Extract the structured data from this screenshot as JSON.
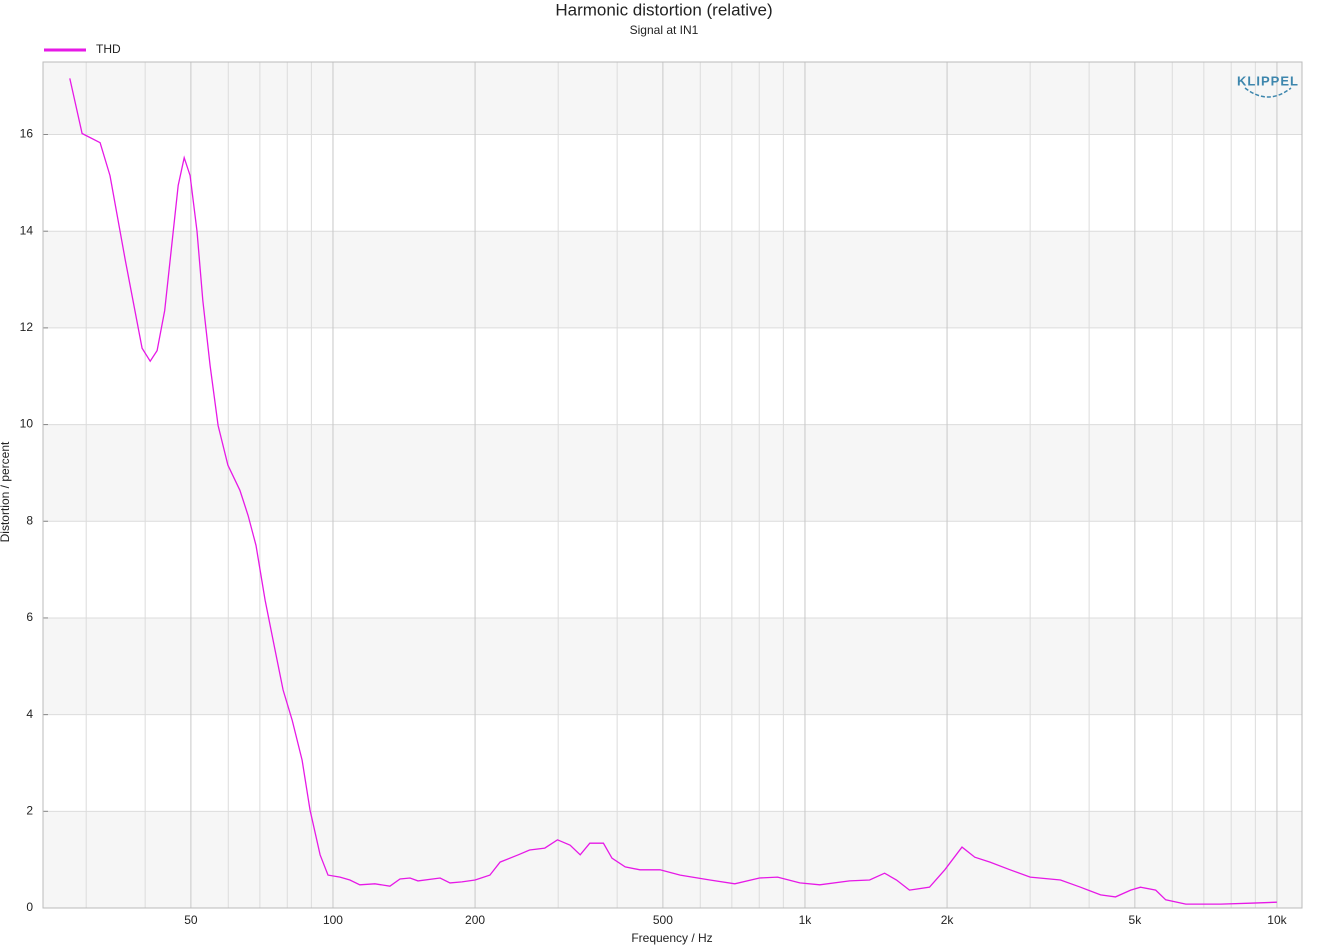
{
  "chart_data": {
    "type": "line",
    "title": "Harmonic distortion (relative)",
    "subtitle": "Signal at IN1",
    "x_label": "Frequency / Hz",
    "y_label": "Distortion / percent",
    "logo": "KLIPPEL",
    "x_scale": "log",
    "xlim": [
      24.3,
      11300
    ],
    "xticks": [
      50,
      100,
      200,
      500,
      {
        "value": 1000,
        "label": "1k"
      },
      {
        "value": 2000,
        "label": "2k"
      },
      {
        "value": 5000,
        "label": "5k"
      },
      {
        "value": 10000,
        "label": "10k"
      }
    ],
    "xminor": [
      30,
      40,
      60,
      70,
      80,
      90,
      300,
      400,
      600,
      700,
      800,
      900,
      3000,
      4000,
      6000,
      7000,
      8000,
      9000
    ],
    "ylim": [
      0,
      17.5
    ],
    "yticks": [
      0,
      2,
      4,
      6,
      8,
      10,
      12,
      14,
      16
    ],
    "grid": true,
    "bands": true,
    "legend": "top-left",
    "x": [
      27.7,
      29.4,
      32.1,
      33.7,
      36.3,
      39.4,
      41.0,
      42.4,
      44.0,
      47.0,
      48.4,
      49.8,
      51.5,
      53.0,
      54.9,
      57.1,
      59.9,
      63.5,
      66.1,
      68.7,
      71.8,
      75.4,
      78.4,
      81.9,
      86.0,
      89.4,
      93.9,
      97.6,
      103.5,
      108.6,
      114,
      122.7,
      132,
      138.7,
      145.6,
      151.4,
      168.6,
      177,
      187.6,
      200,
      215,
      226,
      247,
      261,
      281,
      299,
      318,
      334,
      350,
      374,
      390,
      416,
      447,
      493,
      544,
      629,
      710,
      801,
      875,
      975,
      1075,
      1243,
      1371,
      1475,
      1563,
      1665,
      1836,
      1978,
      2151,
      2290,
      2466,
      2721,
      3001,
      3478,
      3835,
      4230,
      4550,
      4900,
      5140,
      5535,
      5812,
      6410,
      7605,
      8766,
      10000
    ],
    "series": [
      {
        "name": "THD",
        "color": "#e619e6",
        "values": [
          17.16,
          16.02,
          15.83,
          15.15,
          13.4,
          11.58,
          11.31,
          11.53,
          12.36,
          14.95,
          15.52,
          15.15,
          14.0,
          12.57,
          11.22,
          9.98,
          9.16,
          8.64,
          8.12,
          7.5,
          6.37,
          5.33,
          4.51,
          3.89,
          3.06,
          2.03,
          1.1,
          0.68,
          0.64,
          0.58,
          0.48,
          0.5,
          0.45,
          0.6,
          0.62,
          0.56,
          0.62,
          0.52,
          0.54,
          0.58,
          0.68,
          0.95,
          1.1,
          1.2,
          1.24,
          1.41,
          1.3,
          1.1,
          1.34,
          1.34,
          1.03,
          0.85,
          0.79,
          0.79,
          0.68,
          0.58,
          0.5,
          0.62,
          0.64,
          0.52,
          0.48,
          0.56,
          0.58,
          0.72,
          0.58,
          0.37,
          0.43,
          0.79,
          1.26,
          1.05,
          0.95,
          0.79,
          0.64,
          0.58,
          0.43,
          0.27,
          0.23,
          0.37,
          0.43,
          0.37,
          0.17,
          0.08,
          0.08,
          0.1,
          0.12
        ]
      }
    ]
  }
}
